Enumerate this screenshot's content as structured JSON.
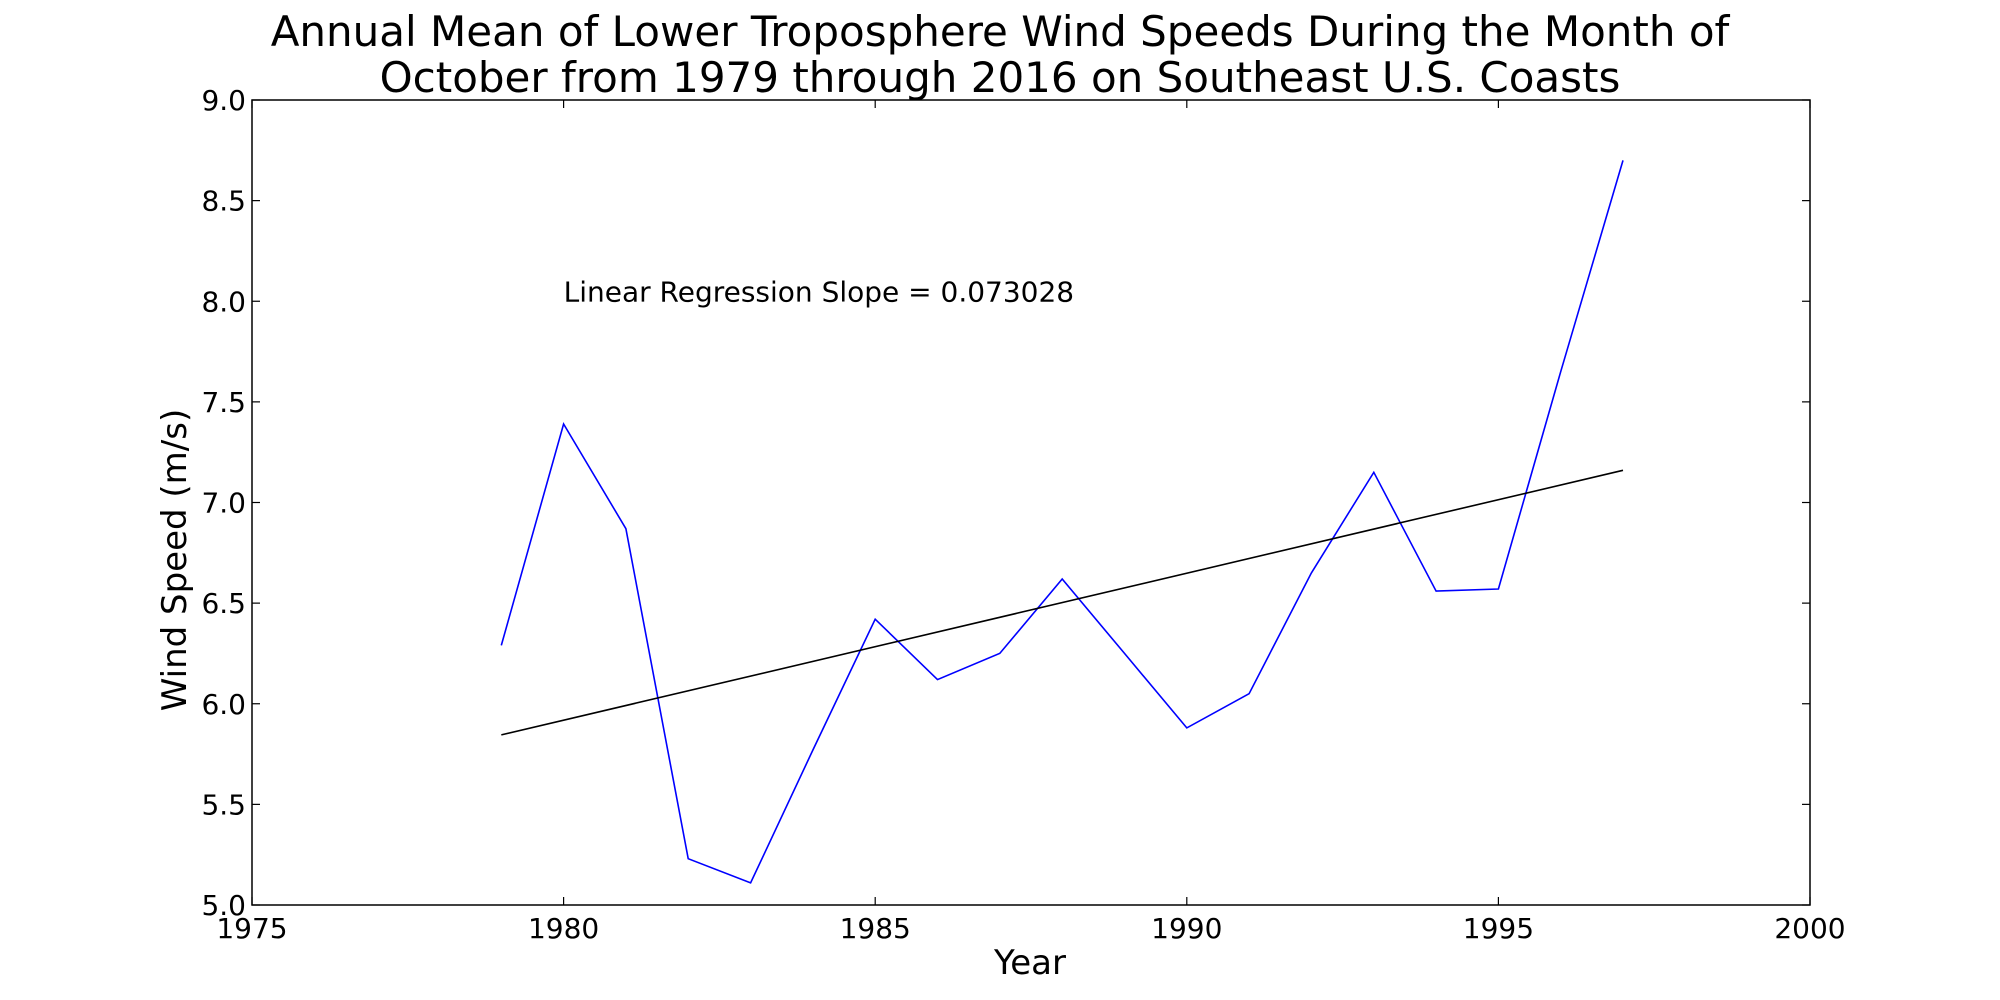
{
  "chart_data": {
    "type": "line",
    "title_lines": [
      "Annual Mean of Lower Troposphere Wind Speeds During the Month of",
      "October from 1979 through 2016 on Southeast U.S. Coasts"
    ],
    "xlabel": "Year",
    "ylabel": "Wind Speed (m/s)",
    "xlim": [
      1975,
      2000
    ],
    "ylim": [
      5.0,
      9.0
    ],
    "xticks": [
      1975,
      1980,
      1985,
      1990,
      1995,
      2000
    ],
    "yticks": [
      5.0,
      5.5,
      6.0,
      6.5,
      7.0,
      7.5,
      8.0,
      8.5,
      9.0
    ],
    "grid": false,
    "series": [
      {
        "color": "#0000ff",
        "x": [
          1979,
          1980,
          1981,
          1982,
          1983,
          1984,
          1985,
          1986,
          1987,
          1988,
          1989,
          1990,
          1991,
          1992,
          1993,
          1994,
          1995,
          1996,
          1997
        ],
        "y": [
          6.29,
          7.39,
          6.87,
          5.23,
          5.11,
          5.77,
          6.42,
          6.12,
          6.25,
          6.62,
          6.25,
          5.88,
          6.05,
          6.65,
          7.15,
          6.56,
          6.57,
          7.65,
          8.7
        ]
      },
      {
        "color": "#000000",
        "x": [
          1979,
          1997
        ],
        "y": [
          5.845,
          7.16
        ]
      }
    ],
    "annotation": {
      "text": "Linear Regression Slope = 0.073028",
      "x": 1980,
      "y": 8.0
    }
  }
}
